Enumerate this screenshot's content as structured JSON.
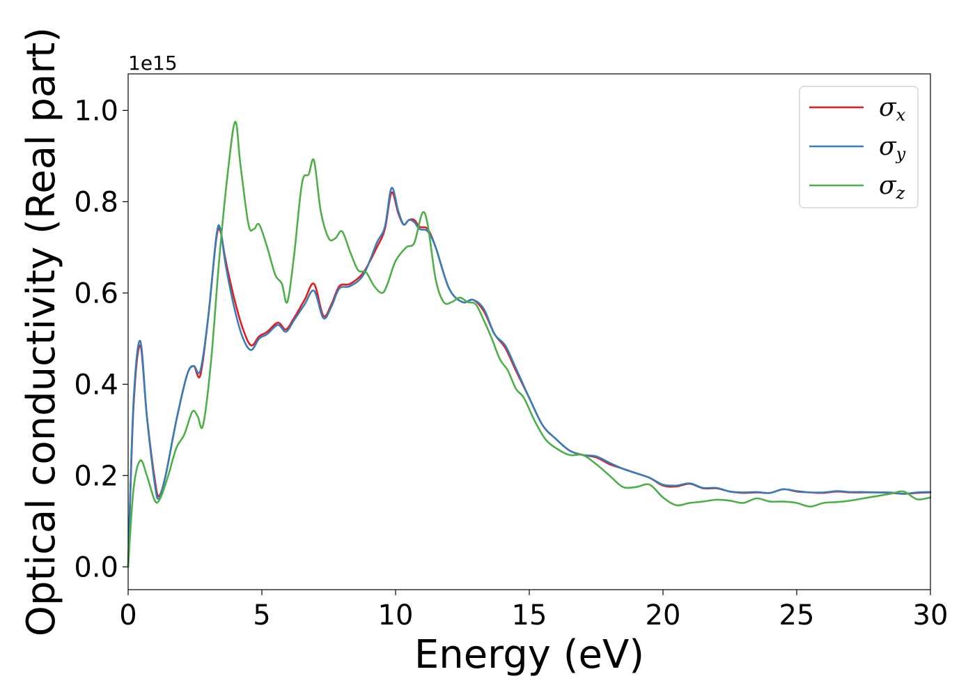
{
  "chart_data": {
    "type": "line",
    "title": "",
    "xlabel": "Energy (eV)",
    "ylabel": "Optical conductivity (Real part)",
    "y_offset_label": "1e15",
    "xlim": [
      0,
      30
    ],
    "ylim": [
      -0.05,
      1.08
    ],
    "x_ticks": [
      0,
      5,
      10,
      15,
      20,
      25,
      30
    ],
    "x_tick_labels": [
      "0",
      "5",
      "10",
      "15",
      "20",
      "25",
      "30"
    ],
    "y_ticks": [
      0.0,
      0.2,
      0.4,
      0.6,
      0.8,
      1.0
    ],
    "y_tick_labels": [
      "0.0",
      "0.2",
      "0.4",
      "0.6",
      "0.8",
      "1.0"
    ],
    "grid": false,
    "legend_position": "top-right",
    "series": [
      {
        "name": "σx",
        "symbol": "σ",
        "sub": "x",
        "color": "#e41a1c",
        "x": [
          0,
          0.2,
          0.45,
          0.7,
          1.0,
          1.15,
          1.4,
          1.8,
          2.2,
          2.45,
          2.7,
          3.0,
          3.3,
          3.45,
          3.65,
          4.0,
          4.3,
          4.6,
          4.9,
          5.2,
          5.6,
          5.9,
          6.2,
          6.6,
          6.95,
          7.3,
          7.6,
          7.9,
          8.3,
          8.8,
          9.3,
          9.6,
          9.85,
          10.1,
          10.3,
          10.5,
          10.7,
          10.9,
          11.2,
          11.5,
          12.0,
          12.5,
          12.9,
          13.3,
          13.7,
          14.1,
          14.5,
          15.0,
          15.5,
          16.0,
          16.5,
          17.0,
          17.5,
          18.0,
          18.5,
          19.0,
          19.5,
          20.0,
          20.5,
          21.0,
          21.5,
          22.0,
          22.5,
          23.0,
          23.5,
          24.0,
          24.5,
          25.0,
          25.5,
          26.0,
          26.5,
          27.0,
          27.5,
          28.0,
          28.5,
          29.0,
          29.5,
          30.0
        ],
        "y": [
          0.0,
          0.35,
          0.485,
          0.33,
          0.19,
          0.155,
          0.2,
          0.32,
          0.42,
          0.44,
          0.42,
          0.55,
          0.72,
          0.735,
          0.67,
          0.58,
          0.52,
          0.485,
          0.505,
          0.515,
          0.535,
          0.52,
          0.545,
          0.585,
          0.62,
          0.55,
          0.575,
          0.615,
          0.62,
          0.645,
          0.7,
          0.74,
          0.82,
          0.775,
          0.75,
          0.76,
          0.76,
          0.745,
          0.74,
          0.7,
          0.61,
          0.58,
          0.585,
          0.56,
          0.51,
          0.48,
          0.43,
          0.37,
          0.31,
          0.28,
          0.255,
          0.245,
          0.24,
          0.225,
          0.215,
          0.205,
          0.195,
          0.178,
          0.176,
          0.182,
          0.172,
          0.172,
          0.165,
          0.162,
          0.163,
          0.162,
          0.17,
          0.165,
          0.163,
          0.162,
          0.165,
          0.163,
          0.163,
          0.163,
          0.162,
          0.16,
          0.162,
          0.163
        ]
      },
      {
        "name": "σy",
        "symbol": "σ",
        "sub": "y",
        "color": "#377eb8",
        "x": [
          0,
          0.2,
          0.45,
          0.7,
          1.0,
          1.15,
          1.4,
          1.8,
          2.2,
          2.45,
          2.7,
          3.0,
          3.3,
          3.45,
          3.65,
          4.0,
          4.3,
          4.6,
          4.9,
          5.2,
          5.6,
          5.9,
          6.2,
          6.6,
          6.95,
          7.3,
          7.6,
          7.9,
          8.3,
          8.8,
          9.3,
          9.6,
          9.85,
          10.1,
          10.3,
          10.5,
          10.7,
          10.9,
          11.2,
          11.5,
          12.0,
          12.5,
          12.9,
          13.3,
          13.7,
          14.1,
          14.5,
          15.0,
          15.5,
          16.0,
          16.5,
          17.0,
          17.5,
          18.0,
          18.5,
          19.0,
          19.5,
          20.0,
          20.5,
          21.0,
          21.5,
          22.0,
          22.5,
          23.0,
          23.5,
          24.0,
          24.5,
          25.0,
          25.5,
          26.0,
          26.5,
          27.0,
          27.5,
          28.0,
          28.5,
          29.0,
          29.5,
          30.0
        ],
        "y": [
          0.0,
          0.36,
          0.495,
          0.33,
          0.18,
          0.15,
          0.2,
          0.32,
          0.42,
          0.44,
          0.43,
          0.55,
          0.725,
          0.74,
          0.66,
          0.56,
          0.5,
          0.475,
          0.5,
          0.51,
          0.53,
          0.515,
          0.54,
          0.575,
          0.605,
          0.545,
          0.57,
          0.61,
          0.615,
          0.64,
          0.71,
          0.745,
          0.83,
          0.78,
          0.75,
          0.76,
          0.755,
          0.74,
          0.735,
          0.7,
          0.61,
          0.58,
          0.585,
          0.565,
          0.51,
          0.485,
          0.435,
          0.37,
          0.31,
          0.28,
          0.255,
          0.245,
          0.242,
          0.228,
          0.215,
          0.205,
          0.195,
          0.18,
          0.178,
          0.183,
          0.173,
          0.173,
          0.165,
          0.163,
          0.164,
          0.162,
          0.17,
          0.166,
          0.163,
          0.163,
          0.166,
          0.164,
          0.164,
          0.163,
          0.163,
          0.16,
          0.163,
          0.164
        ]
      },
      {
        "name": "σz",
        "symbol": "σ",
        "sub": "z",
        "color": "#4daf4a",
        "x": [
          0,
          0.2,
          0.45,
          0.7,
          1.0,
          1.2,
          1.5,
          1.8,
          2.1,
          2.4,
          2.6,
          2.8,
          3.1,
          3.4,
          3.7,
          4.0,
          4.2,
          4.5,
          4.7,
          4.9,
          5.2,
          5.5,
          5.75,
          5.95,
          6.2,
          6.5,
          6.75,
          6.95,
          7.2,
          7.5,
          7.75,
          8.0,
          8.3,
          8.6,
          8.9,
          9.2,
          9.5,
          9.7,
          10.0,
          10.4,
          10.7,
          11.0,
          11.2,
          11.5,
          11.8,
          12.1,
          12.4,
          12.7,
          13.0,
          13.3,
          13.6,
          13.9,
          14.2,
          14.5,
          14.8,
          15.2,
          15.6,
          16.0,
          16.5,
          17.0,
          17.5,
          18.0,
          18.5,
          19.0,
          19.5,
          20.0,
          20.5,
          21.0,
          21.5,
          22.0,
          22.5,
          23.0,
          23.5,
          24.0,
          24.5,
          25.0,
          25.5,
          26.0,
          26.5,
          27.0,
          27.5,
          28.0,
          28.5,
          29.0,
          29.5,
          30.0
        ],
        "y": [
          0.0,
          0.17,
          0.233,
          0.2,
          0.145,
          0.15,
          0.2,
          0.26,
          0.29,
          0.34,
          0.33,
          0.31,
          0.45,
          0.67,
          0.85,
          0.975,
          0.88,
          0.75,
          0.74,
          0.75,
          0.7,
          0.64,
          0.62,
          0.58,
          0.68,
          0.84,
          0.86,
          0.89,
          0.78,
          0.72,
          0.72,
          0.735,
          0.69,
          0.65,
          0.645,
          0.615,
          0.6,
          0.62,
          0.67,
          0.7,
          0.71,
          0.775,
          0.75,
          0.63,
          0.58,
          0.58,
          0.59,
          0.58,
          0.575,
          0.54,
          0.5,
          0.455,
          0.43,
          0.39,
          0.37,
          0.32,
          0.28,
          0.26,
          0.245,
          0.245,
          0.225,
          0.2,
          0.175,
          0.175,
          0.18,
          0.152,
          0.135,
          0.14,
          0.143,
          0.147,
          0.145,
          0.14,
          0.15,
          0.143,
          0.143,
          0.14,
          0.132,
          0.14,
          0.142,
          0.145,
          0.15,
          0.155,
          0.16,
          0.165,
          0.148,
          0.152
        ]
      }
    ]
  }
}
